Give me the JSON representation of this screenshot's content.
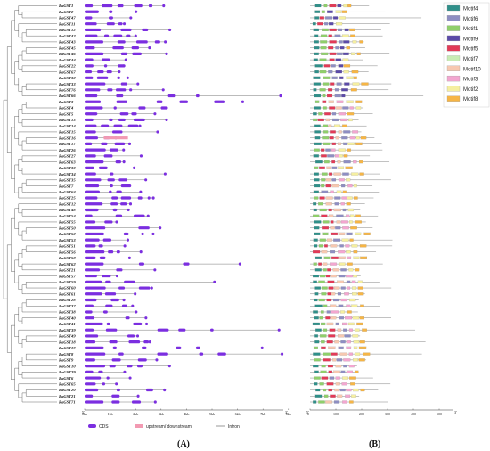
{
  "figure": {
    "panels": [
      "(A)",
      "(B)"
    ],
    "panel_a": {
      "axis_ticks": [
        "0kb",
        "1kb",
        "2kb",
        "3kb",
        "4kb",
        "5kb",
        "6kb",
        "7kb",
        "8kb"
      ],
      "axis_end_left": "5'",
      "axis_end_right": "3'",
      "legend": [
        {
          "label": "CDS",
          "color": "#7b2ee0"
        },
        {
          "label": "upstream/ downstream",
          "color": "#f29ab2"
        },
        {
          "label": "Intron",
          "color": "#555555"
        }
      ]
    },
    "panel_b": {
      "axis_ticks": [
        "0",
        "100",
        "200",
        "300",
        "400",
        "500"
      ],
      "axis_end_left": "5'",
      "axis_end_right": "3'",
      "motif_legend": [
        {
          "label": "Motif4",
          "color": "#2f8f89"
        },
        {
          "label": "Motif6",
          "color": "#8e8ec2"
        },
        {
          "label": "Motif1",
          "color": "#8fcf6a"
        },
        {
          "label": "Motif9",
          "color": "#5b4aa8"
        },
        {
          "label": "Motif5",
          "color": "#e23a57"
        },
        {
          "label": "Motif7",
          "color": "#c8ecb4"
        },
        {
          "label": "Motif10",
          "color": "#f7c8b0"
        },
        {
          "label": "Motif3",
          "color": "#f3a6d0"
        },
        {
          "label": "Motif2",
          "color": "#f5efa0"
        },
        {
          "label": "Motif8",
          "color": "#f6b545"
        }
      ]
    }
  },
  "genes": [
    "RaGST1",
    "RaGST2",
    "RaGST47",
    "RaGST11",
    "RaGST12",
    "RaGST42",
    "RaGST43",
    "RaGST45",
    "RaGST46",
    "RaGST44",
    "RaGST22",
    "RaGST67",
    "RaGST32",
    "RaGST33",
    "RaGST76",
    "RaGST66",
    "RaGST3",
    "RaGST4",
    "RaGST5",
    "RaGST13",
    "RaGST14",
    "RaGST15",
    "RaGST16",
    "RaGST17",
    "RaGST26",
    "RaGST27",
    "RaGST63",
    "RaGST30",
    "RaGST34",
    "RaGST35",
    "RaGST7",
    "RaGST64",
    "RaGST25",
    "RaGST12",
    "RaGST48",
    "RaGST54",
    "RaGST55",
    "RaGST50",
    "RaGST52",
    "RaGST53",
    "RaGST51",
    "RaGST56",
    "RaGST58",
    "RaGST62",
    "RaGST21",
    "RaGST57",
    "RaGST59",
    "RaGST60",
    "RaGST61",
    "RaGST28",
    "RaGST37",
    "RaGST38",
    "RaGST40",
    "RaGST41",
    "RaGST39",
    "RaGST49",
    "RaGST18",
    "RaGST19",
    "RaGST8",
    "RaGST9",
    "RaGST10",
    "RaGST29",
    "RaGST6",
    "RaGST65",
    "RaGST20",
    "RaGST21",
    "RaGST71"
  ]
}
